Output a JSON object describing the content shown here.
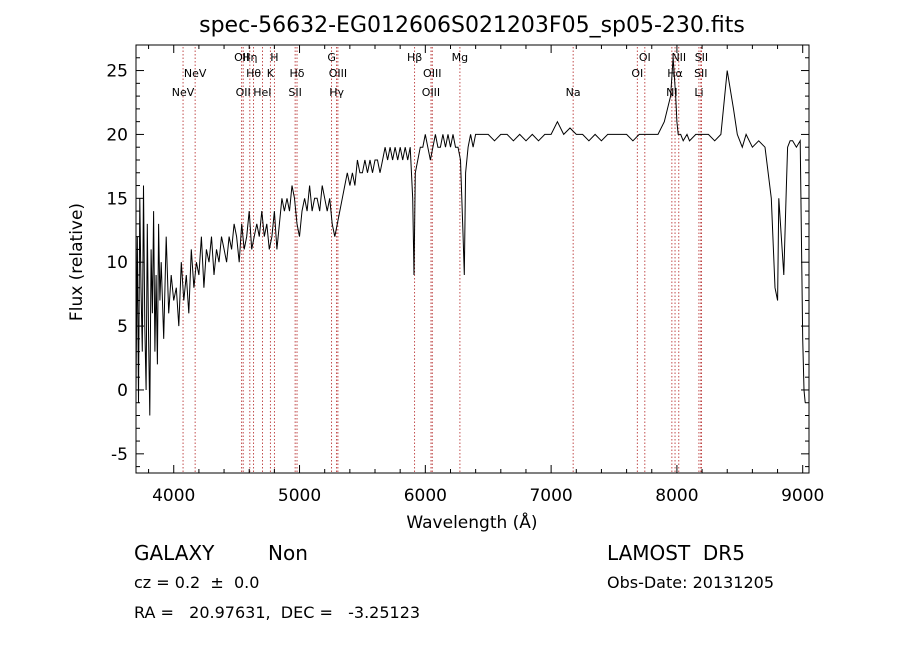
{
  "chart_data": {
    "type": "line",
    "title": "spec-56632-EG012606S021203F05_sp05-230.fits",
    "xlabel": "Wavelength (Å)",
    "ylabel": "Flux (relative)",
    "xlim": [
      3700,
      9050
    ],
    "ylim": [
      -6.5,
      27
    ],
    "xticks": [
      4000,
      5000,
      6000,
      7000,
      8000,
      9000
    ],
    "yticks": [
      -5,
      0,
      5,
      10,
      15,
      20,
      25
    ],
    "grid": false,
    "line_color": "#000000",
    "marker_color": "#b22222",
    "line_markers": [
      {
        "label": "NeV",
        "x": 4074,
        "row": 2
      },
      {
        "label": "NeV",
        "x": 4170,
        "row": 1
      },
      {
        "label": "OII",
        "x": 4540,
        "row": 0
      },
      {
        "label": "OII",
        "x": 4552,
        "row": 2
      },
      {
        "label": "Hη",
        "x": 4605,
        "row": 0
      },
      {
        "label": "Hθ",
        "x": 4635,
        "row": 1
      },
      {
        "label": "HeI",
        "x": 4705,
        "row": 2
      },
      {
        "label": "H",
        "x": 4800,
        "row": 0
      },
      {
        "label": "K",
        "x": 4768,
        "row": 1
      },
      {
        "label": "Hδ",
        "x": 4980,
        "row": 1
      },
      {
        "label": "SII",
        "x": 4965,
        "row": 2
      },
      {
        "label": "G",
        "x": 5255,
        "row": 0
      },
      {
        "label": "OIII",
        "x": 5305,
        "row": 1
      },
      {
        "label": "Hγ",
        "x": 5295,
        "row": 2
      },
      {
        "label": "Hβ",
        "x": 5915,
        "row": 0
      },
      {
        "label": "OIII",
        "x": 6055,
        "row": 1
      },
      {
        "label": "OIII",
        "x": 6045,
        "row": 2
      },
      {
        "label": "Mg",
        "x": 6275,
        "row": 0
      },
      {
        "label": "Na",
        "x": 7175,
        "row": 2
      },
      {
        "label": "OI",
        "x": 7745,
        "row": 0
      },
      {
        "label": "OI",
        "x": 7685,
        "row": 1
      },
      {
        "label": "NII",
        "x": 8015,
        "row": 0
      },
      {
        "label": "Hα",
        "x": 7985,
        "row": 1
      },
      {
        "label": "NI",
        "x": 7960,
        "row": 2
      },
      {
        "label": "SII",
        "x": 8195,
        "row": 0
      },
      {
        "label": "SII",
        "x": 8190,
        "row": 1
      },
      {
        "label": "Li",
        "x": 8175,
        "row": 2
      }
    ],
    "series": [
      {
        "x": [
          3700,
          3710,
          3720,
          3730,
          3740,
          3750,
          3760,
          3770,
          3780,
          3790,
          3800,
          3810,
          3820,
          3830,
          3840,
          3850,
          3860,
          3870,
          3880,
          3890,
          3900,
          3920,
          3940,
          3960,
          3980,
          4000,
          4020,
          4040,
          4060,
          4080,
          4100,
          4120,
          4140,
          4160,
          4180,
          4200,
          4220,
          4240,
          4260,
          4280,
          4300,
          4320,
          4340,
          4360,
          4380,
          4400,
          4420,
          4440,
          4460,
          4480,
          4500,
          4520,
          4540,
          4560,
          4580,
          4600,
          4620,
          4640,
          4660,
          4680,
          4700,
          4720,
          4740,
          4760,
          4780,
          4800,
          4820,
          4840,
          4860,
          4880,
          4900,
          4920,
          4940,
          4960,
          4980,
          5000,
          5020,
          5040,
          5060,
          5080,
          5100,
          5120,
          5140,
          5160,
          5180,
          5200,
          5220,
          5240,
          5260,
          5280,
          5300,
          5320,
          5340,
          5360,
          5380,
          5400,
          5420,
          5440,
          5460,
          5480,
          5500,
          5520,
          5540,
          5560,
          5580,
          5600,
          5620,
          5640,
          5660,
          5680,
          5700,
          5720,
          5740,
          5760,
          5780,
          5800,
          5820,
          5840,
          5860,
          5880,
          5900,
          5910,
          5920,
          5940,
          5960,
          5980,
          6000,
          6020,
          6040,
          6060,
          6080,
          6100,
          6120,
          6140,
          6160,
          6180,
          6200,
          6220,
          6240,
          6260,
          6280,
          6300,
          6310,
          6320,
          6340,
          6360,
          6380,
          6400,
          6450,
          6500,
          6550,
          6600,
          6650,
          6700,
          6750,
          6800,
          6850,
          6900,
          6950,
          7000,
          7050,
          7100,
          7150,
          7200,
          7250,
          7300,
          7350,
          7400,
          7450,
          7500,
          7550,
          7600,
          7650,
          7700,
          7750,
          7800,
          7850,
          7900,
          7950,
          7970,
          7990,
          8000,
          8010,
          8030,
          8050,
          8080,
          8100,
          8150,
          8200,
          8250,
          8300,
          8350,
          8400,
          8450,
          8480,
          8500,
          8520,
          8550,
          8600,
          8650,
          8700,
          8750,
          8780,
          8800,
          8810,
          8830,
          8850,
          8870,
          8880,
          8900,
          8920,
          8950,
          8980,
          9000,
          9010,
          9020
        ],
        "y": [
          0,
          12,
          -1,
          15,
          8,
          3,
          16,
          5,
          0,
          13,
          4,
          -2,
          11,
          6,
          14,
          3,
          9,
          2,
          13,
          7,
          10,
          4,
          12,
          6,
          9,
          7,
          8,
          5,
          10,
          7,
          9,
          6,
          11,
          8,
          10,
          9,
          12,
          8,
          11,
          10,
          12,
          9,
          11,
          10,
          12,
          11,
          10,
          12,
          11,
          13,
          12,
          10,
          13,
          11,
          12,
          14,
          11,
          12,
          13,
          12,
          14,
          12,
          13,
          11,
          12,
          14,
          11,
          13,
          15,
          14,
          15,
          14,
          16,
          15,
          13,
          12,
          14,
          15,
          14,
          16,
          14,
          15,
          15,
          14,
          16,
          15,
          14,
          15,
          13,
          12,
          13,
          14,
          15,
          16,
          17,
          16,
          17,
          16,
          18,
          17,
          17,
          18,
          17,
          18,
          17,
          18,
          18,
          17,
          18,
          19,
          18,
          19,
          18,
          19,
          18,
          19,
          18,
          19,
          18,
          19,
          15,
          9,
          17,
          18,
          19,
          19,
          20,
          19,
          18,
          19,
          20,
          19,
          19,
          20,
          19,
          20,
          19,
          20,
          19,
          19,
          18,
          12,
          9,
          17,
          19,
          20,
          19,
          20,
          20,
          20,
          19.5,
          20,
          20,
          19.5,
          20,
          19.5,
          20,
          19.5,
          20,
          20,
          21,
          20,
          20.5,
          20,
          20,
          19.5,
          20,
          19.5,
          20,
          20,
          20,
          20,
          19.5,
          20,
          20,
          20,
          20,
          21,
          23,
          26,
          23,
          21,
          20,
          20,
          19.5,
          20,
          19.5,
          20,
          20,
          20,
          19.5,
          20,
          25,
          22,
          20,
          19.5,
          19,
          20,
          19,
          19.5,
          19,
          15,
          8,
          7,
          15,
          12,
          9,
          16,
          19,
          19.5,
          19.5,
          19,
          19.5,
          4,
          0,
          -1
        ]
      }
    ]
  },
  "footer": {
    "class_label": "GALAXY",
    "subclass_label": "Non",
    "survey_label": "LAMOST  DR5",
    "cz_text": "cz = 0.2  ±  0.0",
    "obs_date_text": "Obs-Date: 20131205",
    "coords_text": "RA =   20.97631,  DEC =   -3.25123"
  }
}
